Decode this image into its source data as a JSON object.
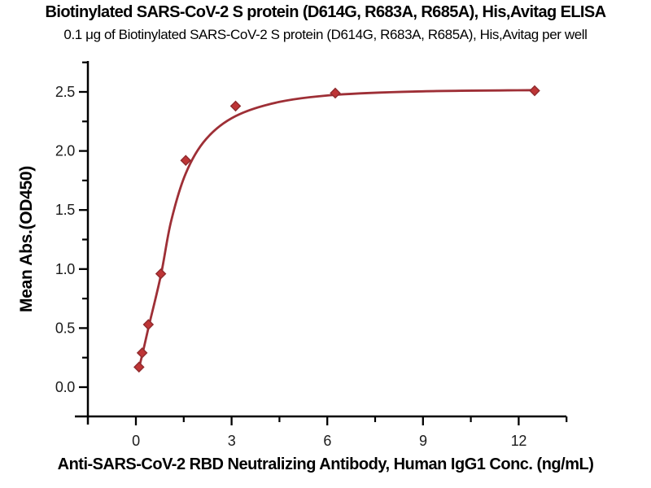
{
  "page": {
    "title": "Biotinylated SARS-CoV-2 S protein (D614G, R683A, R685A), His,Avitag ELISA",
    "subtitle": "0.1 μg of Biotinylated SARS-CoV-2 S protein (D614G, R683A, R685A), His,Avitag per well"
  },
  "chart_data": {
    "type": "scatter",
    "title": "Biotinylated SARS-CoV-2 S protein (D614G, R683A, R685A), His,Avitag ELISA",
    "subtitle": "0.1 μg of Biotinylated SARS-CoV-2 S protein (D614G, R683A, R685A), His,Avitag per well",
    "xlabel": "Anti-SARS-CoV-2 RBD Neutralizing Antibody, Human IgG1 Conc. (ng/mL)",
    "ylabel": "Mean Abs.(OD450)",
    "xlim": [
      -1.9,
      13.5
    ],
    "ylim": [
      -0.25,
      2.77
    ],
    "grid": false,
    "legend": "none",
    "x_axis": {
      "major_ticks": [
        0,
        3,
        6,
        9,
        12
      ],
      "major_tick_labels": [
        "0",
        "3",
        "6",
        "9",
        "12"
      ],
      "minor_ticks": [
        1.5,
        4.5,
        7.5,
        10.5,
        13.5
      ]
    },
    "y_axis": {
      "major_ticks": [
        0.0,
        0.5,
        1.0,
        1.5,
        2.0,
        2.5
      ],
      "major_tick_labels": [
        "0.0",
        "0.5",
        "1.0",
        "1.5",
        "2.0",
        "2.5"
      ],
      "minor_ticks": [
        0.25,
        0.75,
        1.25,
        1.75,
        2.25,
        2.75
      ]
    },
    "series": [
      {
        "name": "Anti-SARS-CoV-2 RBD Neutralizing Antibody, Human IgG1",
        "marker": "diamond",
        "x": [
          0.0977,
          0.1953,
          0.3906,
          0.7813,
          1.5625,
          3.125,
          6.25,
          12.5
        ],
        "y": [
          0.17,
          0.29,
          0.53,
          0.96,
          1.92,
          2.38,
          2.49,
          2.51
        ]
      }
    ],
    "fit_curve": {
      "type": "4PL sigmoidal fit",
      "anchors": [
        [
          0.0977,
          0.165
        ],
        [
          0.1953,
          0.27
        ],
        [
          0.3906,
          0.5
        ],
        [
          0.7813,
          0.945
        ],
        [
          1.1,
          1.4
        ],
        [
          1.5625,
          1.81
        ],
        [
          2.2,
          2.1
        ],
        [
          3.125,
          2.295
        ],
        [
          4.5,
          2.415
        ],
        [
          6.25,
          2.475
        ],
        [
          9.0,
          2.505
        ],
        [
          12.5,
          2.515
        ]
      ]
    },
    "colors": {
      "curve": "#9E2F36",
      "marker_fill": "#BE3536",
      "marker_stroke": "#8F2A2D",
      "axis": "#000000",
      "tick_label": "#1b1b1b"
    }
  }
}
